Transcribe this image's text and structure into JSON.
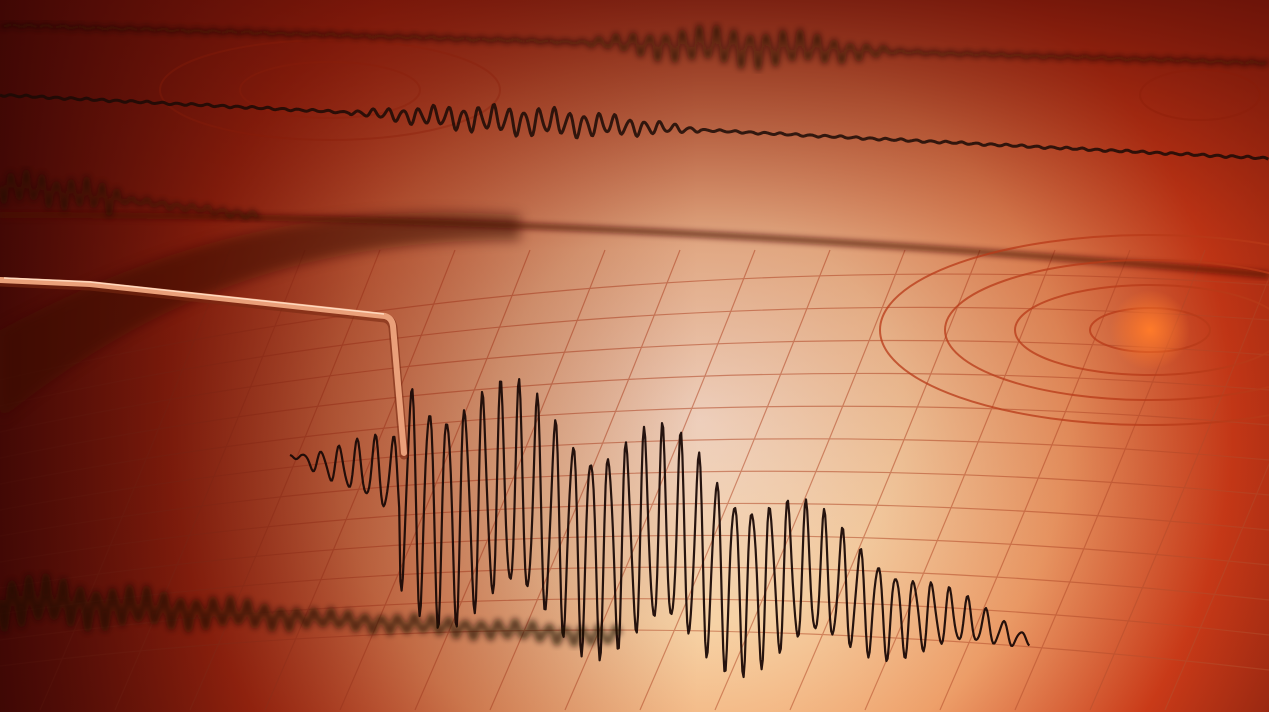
{
  "scene": {
    "subject": "seismograph",
    "colors": {
      "paper_light": "#fff3dc",
      "paper_mid": "#f2b57a",
      "warm_orange": "#d9481f",
      "deep_red": "#5a0d06",
      "ink": "#1a0a06",
      "grid": "#b5502e",
      "needle": "#e9a57a"
    }
  }
}
